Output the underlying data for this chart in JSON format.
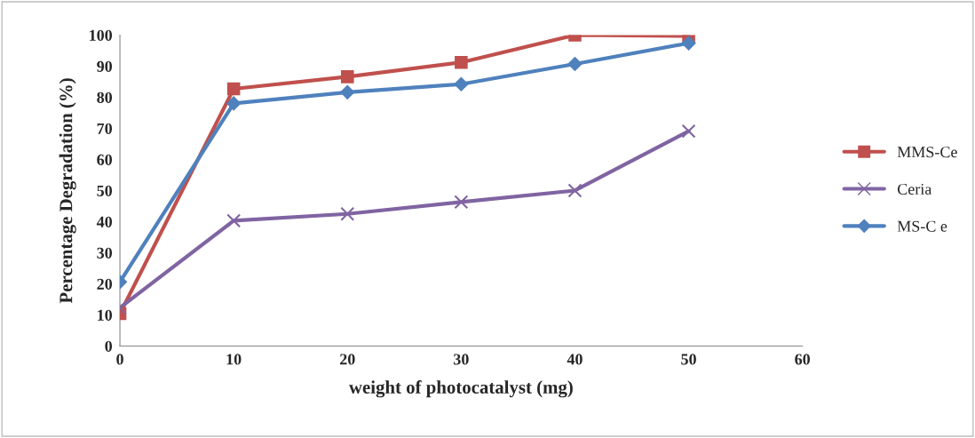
{
  "chart_data": {
    "type": "line",
    "xlabel": "weight of photocatalyst (mg)",
    "ylabel": "Percentage Degradation (%)",
    "x": [
      0,
      10,
      20,
      30,
      40,
      50
    ],
    "series": [
      {
        "name": "MMS-Ce",
        "color": "#c0504d",
        "marker": "square",
        "values": [
          10.4,
          82.7,
          86.6,
          91.2,
          100,
          99.7
        ]
      },
      {
        "name": "Ceria",
        "color": "#8064a2",
        "marker": "cross",
        "values": [
          12.3,
          40.3,
          42.5,
          46.3,
          50,
          69.1
        ]
      },
      {
        "name": "MS-C e",
        "color": "#4f81bd",
        "marker": "diamond",
        "values": [
          20.6,
          78,
          81.6,
          84.2,
          90.7,
          97.4
        ]
      }
    ],
    "xlim": [
      0,
      60
    ],
    "xticks": [
      0,
      10,
      20,
      30,
      40,
      50,
      60
    ],
    "ylim": [
      0,
      100
    ],
    "yticks": [
      0,
      10,
      20,
      30,
      40,
      50,
      60,
      70,
      80,
      90,
      100
    ],
    "grid": false,
    "legend": "right",
    "line_style": "solid"
  }
}
